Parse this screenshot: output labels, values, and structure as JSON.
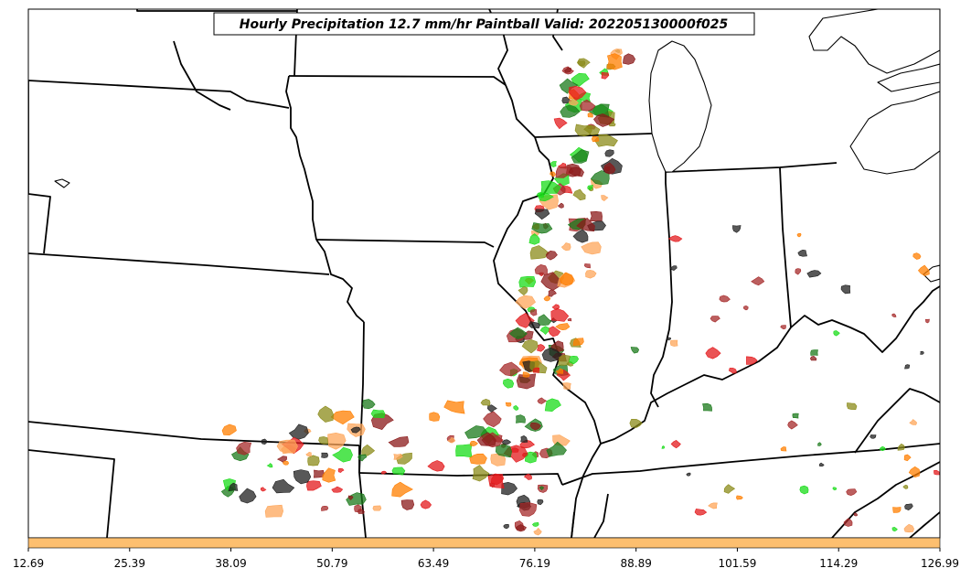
{
  "title": "Hourly Precipitation 12.7 mm/hr Paintball Valid: 202205130000f025",
  "colorbar": {
    "color": "#FDBF6F",
    "tick_labels": [
      "12.69",
      "25.39",
      "38.09",
      "50.79",
      "63.49",
      "76.19",
      "88.89",
      "101.59",
      "114.29",
      "126.99"
    ]
  },
  "member_colors": [
    "#E31A1C",
    "#FF7F00",
    "#1ADC1A",
    "#1B7A1B",
    "#8B1A1A",
    "#8B8B1A",
    "#FDA65A",
    "#A52A2A",
    "#202020"
  ],
  "colors": {
    "border": "#000000",
    "background": "#FFFFFF"
  }
}
